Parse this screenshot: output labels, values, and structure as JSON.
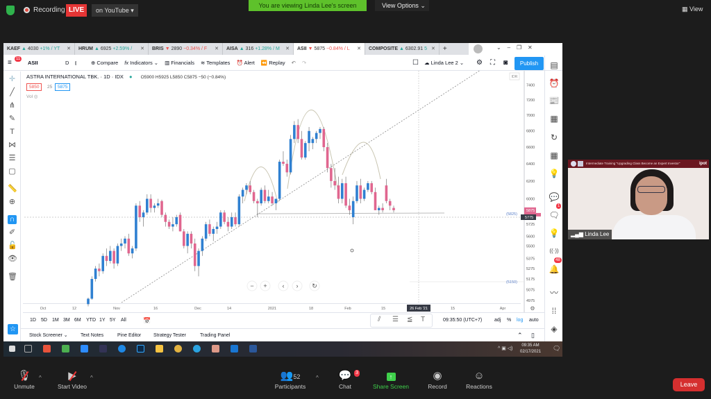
{
  "zoom_top": {
    "recording": "Recording",
    "live": "LIVE",
    "youtube": "on YouTube ▾",
    "viewing": "You are viewing Linda Lee's screen",
    "view_options": "View Options ⌄",
    "view": "View"
  },
  "tabs": [
    {
      "sym": "KAEF",
      "arrow": "▲",
      "price": "4030",
      "chg": "+1% / YT",
      "dir": "up"
    },
    {
      "sym": "HRUM",
      "arrow": "▲",
      "price": "6925",
      "chg": "+2.59% /",
      "dir": "up"
    },
    {
      "sym": "BRIS",
      "arrow": "▼",
      "price": "2890",
      "chg": "−0.34% / F",
      "dir": "dn"
    },
    {
      "sym": "AISA",
      "arrow": "▲",
      "price": "316",
      "chg": "+1.28% / M",
      "dir": "up"
    },
    {
      "sym": "ASII",
      "arrow": "▼",
      "price": "5875",
      "chg": "−0.84% / L",
      "dir": "dn"
    },
    {
      "sym": "COMPOSITE",
      "arrow": "▲",
      "price": "6302.91",
      "chg": "5",
      "dir": "up"
    }
  ],
  "toolbar": {
    "symbol": "ASII",
    "interval": "D",
    "compare": "Compare",
    "indicators": "Indicators",
    "financials": "Financials",
    "templates": "Templates",
    "alert": "Alert",
    "replay": "Replay",
    "layout": "Linda Lee 2",
    "publish": "Publish",
    "menu_badge": "11"
  },
  "legend": {
    "title": "ASTRA INTERNATIONAL TBK. · 1D · IDX",
    "ohlc": "O5900 H5925 L5850 C5875 −50 (−0.84%)",
    "bid": "5850",
    "spread": "25",
    "ask": "5875",
    "vol": "Vol"
  },
  "chart_data": {
    "type": "candlestick",
    "symbol": "ASII",
    "interval": "1D",
    "scale": "log",
    "currency": "IDR",
    "y_ticks": [
      7400,
      7200,
      7000,
      6800,
      6600,
      6400,
      6200,
      6000,
      5725,
      5600,
      5500,
      5375,
      5275,
      5175,
      5075,
      4975
    ],
    "x_ticks": [
      "Oct",
      "12",
      "Nov",
      "16",
      "Dec",
      "14",
      "2021",
      "18",
      "Feb",
      "15",
      "26 Feb '21",
      "15",
      "Apr"
    ],
    "last_price": "5875",
    "crosshair_price": "5775",
    "levels": [
      "(5825)",
      "(5150)"
    ],
    "colors": {
      "up": "#2f80d1",
      "down": "#e0668f"
    },
    "candles": [
      [
        "2020-10-19",
        4940,
        5000,
        4920,
        4990
      ],
      [
        "2020-10-20",
        4990,
        5200,
        4980,
        5175
      ],
      [
        "2020-10-21",
        5175,
        5300,
        5150,
        5275
      ],
      [
        "2020-10-22",
        5275,
        5325,
        5200,
        5250
      ],
      [
        "2020-10-23",
        5250,
        5425,
        5225,
        5400
      ],
      [
        "2020-10-26",
        5400,
        5475,
        5300,
        5350
      ],
      [
        "2020-10-27",
        5350,
        5500,
        5325,
        5450
      ],
      [
        "2020-10-28",
        5450,
        5475,
        5275,
        5325
      ],
      [
        "2020-10-29",
        5325,
        5525,
        5300,
        5500
      ],
      [
        "2020-10-30",
        5500,
        5575,
        5450,
        5525
      ],
      [
        "2020-11-02",
        5525,
        5600,
        5475,
        5575
      ],
      [
        "2020-11-03",
        5575,
        5625,
        5400,
        5425
      ],
      [
        "2020-11-04",
        5425,
        5500,
        5375,
        5475
      ],
      [
        "2020-11-05",
        5475,
        5950,
        5450,
        5925
      ],
      [
        "2020-11-06",
        5925,
        5975,
        5750,
        5800
      ],
      [
        "2020-11-09",
        5800,
        5875,
        5700,
        5850
      ],
      [
        "2020-11-10",
        5850,
        6050,
        5825,
        6000
      ],
      [
        "2020-11-11",
        6000,
        6050,
        5850,
        5900
      ],
      [
        "2020-11-12",
        5900,
        5950,
        5850,
        5925
      ],
      [
        "2020-11-13",
        5925,
        6000,
        5900,
        5950
      ],
      [
        "2020-11-16",
        5975,
        5990,
        5800,
        5825
      ],
      [
        "2020-11-17",
        5825,
        5850,
        5700,
        5750
      ],
      [
        "2020-11-18",
        5750,
        5775,
        5675,
        5700
      ],
      [
        "2020-11-19",
        5700,
        5800,
        5650,
        5725
      ],
      [
        "2020-11-20",
        5725,
        5825,
        5700,
        5800
      ],
      [
        "2020-11-23",
        5825,
        5850,
        5650,
        5650
      ],
      [
        "2020-11-24",
        5650,
        5675,
        5475,
        5500
      ],
      [
        "2020-11-25",
        5500,
        5650,
        5425,
        5625
      ],
      [
        "2020-11-26",
        5625,
        5650,
        5475,
        5525
      ],
      [
        "2020-11-27",
        5525,
        5575,
        5250,
        5300
      ],
      [
        "2020-11-30",
        5300,
        5475,
        5200,
        5450
      ],
      [
        "2020-12-01",
        5450,
        5600,
        5400,
        5575
      ],
      [
        "2020-12-02",
        5575,
        5750,
        5550,
        5725
      ],
      [
        "2020-12-03",
        5725,
        5775,
        5600,
        5625
      ],
      [
        "2020-12-04",
        5625,
        5700,
        5550,
        5675
      ],
      [
        "2020-12-07",
        5675,
        5750,
        5625,
        5700
      ],
      [
        "2020-12-08",
        5700,
        5875,
        5675,
        5850
      ],
      [
        "2020-12-09",
        5850,
        5875,
        5725,
        5750
      ],
      [
        "2020-12-10",
        5750,
        5800,
        5650,
        5700
      ],
      [
        "2020-12-11",
        5700,
        5850,
        5675,
        5800
      ],
      [
        "2020-12-14",
        5800,
        5850,
        5700,
        5725
      ],
      [
        "2020-12-15",
        5725,
        6050,
        5700,
        6025
      ],
      [
        "2020-12-16",
        6025,
        6125,
        5950,
        6100
      ],
      [
        "2020-12-17",
        6100,
        6175,
        6050,
        6150
      ],
      [
        "2020-12-18",
        6150,
        6200,
        6050,
        6075
      ],
      [
        "2020-12-21",
        6075,
        6100,
        5950,
        5975
      ],
      [
        "2020-12-22",
        5975,
        6000,
        5800,
        5950
      ],
      [
        "2020-12-23",
        5950,
        6125,
        5925,
        6100
      ],
      [
        "2020-12-24",
        6100,
        6150,
        5950,
        5975
      ],
      [
        "2020-12-28",
        5975,
        6100,
        5950,
        6025
      ],
      [
        "2020-12-29",
        6025,
        6075,
        5925,
        5950
      ],
      [
        "2020-12-30",
        5950,
        6000,
        5875,
        6000
      ],
      [
        "2021-01-04",
        6000,
        6450,
        5975,
        6425
      ],
      [
        "2021-01-05",
        6425,
        6550,
        6375,
        6400
      ],
      [
        "2021-01-06",
        6400,
        6450,
        6250,
        6300
      ],
      [
        "2021-01-07",
        6300,
        6750,
        6275,
        6700
      ],
      [
        "2021-01-08",
        6700,
        6925,
        6650,
        6875
      ],
      [
        "2021-01-11",
        6875,
        6950,
        6650,
        6700
      ],
      [
        "2021-01-12",
        6700,
        6800,
        6450,
        6475
      ],
      [
        "2021-01-13",
        6475,
        6675,
        6450,
        6650
      ],
      [
        "2021-01-14",
        6650,
        6850,
        6550,
        6800
      ],
      [
        "2021-01-15",
        6650,
        6725,
        6575,
        6700
      ],
      [
        "2021-01-18",
        6700,
        6800,
        6650,
        6775
      ],
      [
        "2021-01-19",
        6775,
        6850,
        6700,
        6825
      ],
      [
        "2021-01-20",
        6825,
        6850,
        6550,
        6600
      ],
      [
        "2021-01-21",
        6600,
        6650,
        6300,
        6350
      ],
      [
        "2021-01-22",
        6350,
        6400,
        6125,
        6200
      ],
      [
        "2021-01-25",
        6200,
        6350,
        6100,
        6150
      ],
      [
        "2021-01-26",
        6150,
        6250,
        5950,
        6000
      ],
      [
        "2021-01-27",
        6000,
        6225,
        5950,
        6175
      ],
      [
        "2021-01-28",
        6175,
        6250,
        5900,
        5925
      ],
      [
        "2021-01-29",
        5925,
        6000,
        5825,
        5875
      ],
      [
        "2021-02-01",
        5800,
        6025,
        5725,
        5975
      ],
      [
        "2021-02-02",
        5975,
        6200,
        5950,
        6150
      ],
      [
        "2021-02-03",
        6150,
        6225,
        5950,
        6000
      ],
      [
        "2021-02-04",
        6000,
        6125,
        5975,
        6100
      ],
      [
        "2021-02-05",
        6100,
        6200,
        6075,
        6175
      ],
      [
        "2021-02-08",
        6175,
        6200,
        6050,
        6075
      ],
      [
        "2021-02-09",
        6075,
        6125,
        5875,
        5875
      ],
      [
        "2021-02-10",
        5875,
        5925,
        5825,
        5900
      ],
      [
        "2021-02-11",
        5900,
        5950,
        5850,
        5875
      ],
      [
        "2021-02-15",
        6150,
        6225,
        5950,
        5975
      ],
      [
        "2021-02-16",
        5975,
        6000,
        5875,
        5925
      ],
      [
        "2021-02-17",
        5900,
        5925,
        5850,
        5875
      ]
    ]
  },
  "ranges": [
    "1D",
    "5D",
    "1M",
    "3M",
    "6M",
    "YTD",
    "1Y",
    "5Y",
    "All"
  ],
  "time": "09:35:50 (UTC+7)",
  "scale_opts": [
    "adj",
    "%",
    "log",
    "auto"
  ],
  "bottom_tabs": [
    "Stock Screener ⌄",
    "Text Notes",
    "Pine Editor",
    "Strategy Tester",
    "Trading Panel"
  ],
  "taskbar": {
    "time": "09:35 AM",
    "date": "02/17/2021"
  },
  "rbar": {
    "chat_badge": "1",
    "alert_badge": "48"
  },
  "cam": {
    "banner": "Intermediate Training \"Upgrading Class Become an Expert Investor\"",
    "logo": "ipot",
    "name": "Linda Lee"
  },
  "zoom_bottom": {
    "unmute": "Unmute",
    "video": "Start Video",
    "participants": "Participants",
    "count": "52",
    "chat": "Chat",
    "chat_badge": "3",
    "share": "Share Screen",
    "record": "Record",
    "reactions": "Reactions",
    "leave": "Leave"
  }
}
